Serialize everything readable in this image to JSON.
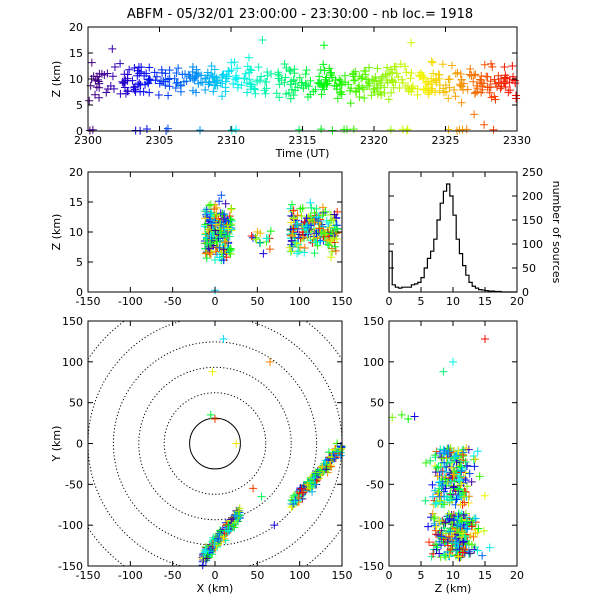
{
  "header": {
    "title": "ABFM - 05/32/01 23:00:00 - 23:30:00 - nb loc.=   1918"
  },
  "chart_data": [
    {
      "id": "time_height",
      "type": "scatter",
      "title": "ABFM - 05/32/01 23:00:00 - 23:30:00 - nb loc.=   1918",
      "xlabel": "Time (UT)",
      "ylabel": "Z (km)",
      "xlim": [
        2300,
        2330
      ],
      "ylim": [
        0,
        20
      ],
      "xticks": [
        2300,
        2305,
        2310,
        2315,
        2320,
        2325,
        2330
      ],
      "yticks": [
        0,
        5,
        10,
        15,
        20
      ],
      "color_encoding": "time (violet to red rainbow)",
      "generated": {
        "n": 520,
        "x_range": [
          2300,
          2330
        ],
        "y_center": 9.5,
        "y_spread": 5.5,
        "ground_fraction": 0.04
      },
      "highlight_points": [
        {
          "x": 2301.7,
          "y": 15.8
        },
        {
          "x": 2312.2,
          "y": 17.5
        },
        {
          "x": 2316.5,
          "y": 16.5
        },
        {
          "x": 2322.6,
          "y": 17.0
        },
        {
          "x": 2327.7,
          "y": 1.2
        },
        {
          "x": 2327.0,
          "y": 3.2
        }
      ]
    },
    {
      "id": "x_height",
      "type": "scatter",
      "xlabel": "",
      "ylabel": "Z (km)",
      "xlim": [
        -150,
        150
      ],
      "ylim": [
        0,
        20
      ],
      "xticks": [
        -150,
        -100,
        -50,
        0,
        50,
        100,
        150
      ],
      "yticks": [
        0,
        5,
        10,
        15,
        20
      ],
      "clusters": [
        {
          "x_range": [
            -12,
            20
          ],
          "z_range": [
            4,
            16
          ],
          "n": 230
        },
        {
          "x_range": [
            88,
            145
          ],
          "z_range": [
            5,
            16
          ],
          "n": 210
        },
        {
          "x_range": [
            40,
            70
          ],
          "z_range": [
            6,
            11
          ],
          "n": 15
        }
      ]
    },
    {
      "id": "height_histogram",
      "type": "line",
      "xlabel": "",
      "ylabel": "number of sources",
      "xlim": [
        0,
        20
      ],
      "ylim": [
        0,
        250
      ],
      "xticks": [
        0,
        5,
        10,
        15,
        20
      ],
      "yticks": [
        0,
        50,
        100,
        150,
        200,
        250
      ],
      "bin_width": 0.5,
      "x": [
        0,
        0.5,
        1,
        1.5,
        2,
        2.5,
        3,
        3.5,
        4,
        4.5,
        5,
        5.5,
        6,
        6.5,
        7,
        7.5,
        8,
        8.5,
        9,
        9.5,
        10,
        10.5,
        11,
        11.5,
        12,
        12.5,
        13,
        13.5,
        14,
        14.5,
        15,
        15.5,
        16,
        16.5,
        17,
        17.5,
        18,
        18.5,
        19,
        19.5
      ],
      "values": [
        85,
        15,
        10,
        8,
        10,
        10,
        10,
        15,
        17,
        20,
        30,
        50,
        70,
        85,
        110,
        150,
        185,
        210,
        225,
        200,
        160,
        110,
        80,
        55,
        35,
        20,
        12,
        8,
        5,
        4,
        3,
        2,
        2,
        1,
        1,
        0,
        0,
        0,
        0,
        0
      ]
    },
    {
      "id": "plan_view",
      "type": "scatter",
      "xlabel": "X (km)",
      "ylabel": "Y (km)",
      "xlim": [
        -150,
        150
      ],
      "ylim": [
        -150,
        150
      ],
      "xticks": [
        -150,
        -100,
        -50,
        0,
        50,
        100,
        150
      ],
      "yticks": [
        -150,
        -100,
        -50,
        0,
        50,
        100,
        150
      ],
      "range_rings_km": [
        30,
        60,
        90,
        120,
        150,
        180
      ],
      "clusters": [
        {
          "x_range": [
            -15,
            30
          ],
          "y_range": [
            -140,
            -85
          ],
          "n": 230
        },
        {
          "x_range": [
            90,
            150
          ],
          "y_range": [
            -75,
            -5
          ],
          "n": 210
        }
      ],
      "highlight_points": [
        {
          "x": 10,
          "y": 128
        },
        {
          "x": 65,
          "y": 100
        },
        {
          "x": -3,
          "y": 88
        },
        {
          "x": -5,
          "y": 35
        },
        {
          "x": 0,
          "y": 30
        },
        {
          "x": 25,
          "y": 0
        },
        {
          "x": 45,
          "y": -55
        },
        {
          "x": 55,
          "y": -65
        },
        {
          "x": 70,
          "y": -100
        }
      ]
    },
    {
      "id": "z_y_view",
      "type": "scatter",
      "xlabel": "Z (km)",
      "ylabel": "",
      "xlim": [
        0,
        20
      ],
      "ylim": [
        -150,
        150
      ],
      "xticks": [
        0,
        5,
        10,
        15,
        20
      ],
      "yticks": [
        -150,
        -100,
        -50,
        0,
        50,
        100,
        150
      ],
      "clusters": [
        {
          "z_range": [
            5,
            16
          ],
          "y_range": [
            -140,
            -85
          ],
          "n": 230
        },
        {
          "z_range": [
            5,
            15
          ],
          "y_range": [
            -75,
            -5
          ],
          "n": 210
        }
      ],
      "highlight_points": [
        {
          "x": 15,
          "y": 128
        },
        {
          "x": 10,
          "y": 100
        },
        {
          "x": 8.5,
          "y": 88
        },
        {
          "x": 0.5,
          "y": 32
        },
        {
          "x": 2,
          "y": 35
        },
        {
          "x": 3,
          "y": 30
        },
        {
          "x": 4,
          "y": 33
        }
      ]
    }
  ]
}
